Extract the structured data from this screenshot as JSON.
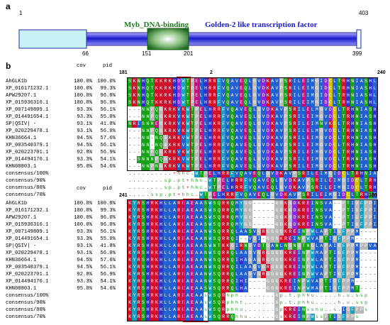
{
  "panel_a": {
    "label": "a",
    "start_pos": "1",
    "end_pos": "403",
    "domain_myb": "Myb_DNA-binding",
    "domain_golden": "Golden-2 like transcription factor",
    "ticks": [
      "66",
      "151",
      "201",
      "399"
    ],
    "colors": {
      "light": "#c7f0f7",
      "golden": "#2222cc",
      "myb": "#2f7d2a",
      "myb_text": "#1f7a1f"
    }
  },
  "panel_b": {
    "label": "b",
    "block1": {
      "start": "181",
      "mid": "2",
      "end": "240",
      "header": {
        "cov": "cov",
        "pid": "pid"
      },
      "rows": [
        {
          "name": "AhGLK1b",
          "cov": "100.0%",
          "pid": "100.0%",
          "seq": "SKNHQTKKRKHDWTPELHRRFVQAVEQLGVDKAVPSRILEIMGIDCLTRHNIASHLQ"
        },
        {
          "name": "XP_016171232.1",
          "cov": "100.0%",
          "pid": "99.3%",
          "seq": "SKNHQTKKRKHDWTPELHRRFVQAVEQLGVDKAVPSRILEIMGIDCLTRHNIASHLQ"
        },
        {
          "name": "APW29207.1",
          "cov": "100.0%",
          "pid": "96.0%",
          "seq": "SKNHQTKKRKHDWTPELHRRFVQAVEQLGVDKAVPSRILEIMGIDCLTRHNIASHLQ"
        },
        {
          "name": "XP_015936316.1",
          "cov": "100.0%",
          "pid": "96.0%",
          "seq": "SKNHQTKKRKHDWTPELHRRFVQAVEQLGVDKAVPSRILEIMGIDCLTRHNIASHLQ"
        },
        {
          "name": "XP_007149809.1",
          "cov": "93.3%",
          "pid": "56.1%",
          "seq": "---NNPQGKRKVKWTPELHRRFVQAVEQLGVDKAVPSRILELMGVDCLTRHNIASHLQ"
        },
        {
          "name": "XP_014491654.1",
          "cov": "93.3%",
          "pid": "55.0%",
          "seq": "---NNPQGKRKVKWTPELHRRFVQAVEQLGVDKAVPSRILEIMGVDCLTRHNIASHLQ"
        },
        {
          "name": "SP|QSIV| -",
          "cov": "93.1%",
          "pid": "41.8%",
          "seq": "NRISNNEGKRKVKWTPELHKRFVQAVEQLGVDKAVPSRILEIMNVKCLTRHNIASHLQ"
        },
        {
          "name": "XP_020229478.1",
          "cov": "93.1%",
          "pid": "56.0%",
          "seq": "---NNPQGKRKVKWTPELHRRFVQAVEQLGVDKAVPSRILELMGVDCLTRHNIASHLQ"
        },
        {
          "name": "KHN36664.1",
          "cov": "94.5%",
          "pid": "57.6%",
          "seq": "---NN-NQGKRKVWTPELHRRFVQAVEQLGVDKAVPSRILEIMGVDCLTRHNIASHLQ"
        },
        {
          "name": "XP_003540379.1",
          "cov": "94.5%",
          "pid": "56.1%",
          "seq": "---NN-NQGKRKVWTPELHRRFVQAVEQLGVDKAVPSRILEIMGVDCLTRHNIASHLQ"
        },
        {
          "name": "XP_020223701.1",
          "cov": "92.8%",
          "pid": "56.9%",
          "seq": "---NNPQGKRKVKWTPELHRRFVQAVEQLGVDKAVPSRILEIMGVDCLTRHNIASHLQ"
        },
        {
          "name": "XP_014494176.1",
          "cov": "93.3%",
          "pid": "54.1%",
          "seq": "--SNNNPQGKRKVWTPELHRRFVQAVEQLGVDKAVPSRILEIMGVDCLTRHNIASHLQ"
        },
        {
          "name": "KHN08803.1",
          "cov": "95.0%",
          "pid": "54.6%",
          "seq": "---NNPNGKRKVKWTPELHRRFVQAVEQLGVDKAVPSRILEIMGVDCLTRHNIASHLQ"
        }
      ],
      "consensus": [
        {
          "name": "consensus/100%",
          "seq": "..........+hhc.WTPELHRRFVQAVEQLGVDKAVPSRILEIMGIDCLTRHNIASHLQ"
        },
        {
          "name": "consensus/90%",
          "seq": "........sp.pt+hhc.WTPELHRRFVQAVEQLGVDKAVPSRILEIMGIDCLTRHNIASHLQ"
        },
        {
          "name": "consensus/80%",
          "seq": "........sp.pt+hhc.WTPELHRRFVQAVEQLGVDKAVPSRILEIMGIDCLTRHNIASHLQ"
        },
        {
          "name": "consensus/70%",
          "seq": ".....ssp.pt+hhc.WTPELHRRFVQAVEQLGVDKAVPSRILEIMGIDCLTRHNIASHLQ"
        }
      ]
    },
    "block2": {
      "start": "241",
      "end": ".300",
      "header": {
        "cov": "cov",
        "pid": "pid"
      },
      "rows": [
        {
          "name": "AhGLK1b",
          "cov": "100.0%",
          "pid": "100.0%",
          "seq": "KYRSHRKHLLAREAEAASWSQRRQMYGG-----GGKGDKREINSVA--PTIGFPPIP"
        },
        {
          "name": "XP_016171232.1",
          "cov": "100.0%",
          "pid": "99.3%",
          "seq": "KYRSHRKHLLAREAEAASWSQRRQMYGG-----GGKGDKREINSVA--PTIGFPPIP"
        },
        {
          "name": "APW29207.1",
          "cov": "100.0%",
          "pid": "96.0%",
          "seq": "KYRSHRKHLLAREAEAASWSQRRQMYGG-----GGKGDKREINSVA--PTIGFPPIP"
        },
        {
          "name": "XP_015936316.1",
          "cov": "100.0%",
          "pid": "96.0%",
          "seq": "KYRSHRKHLLAREAEAASWSQRRQMYGG-----GGKGDKREINSVA--PTIGFPPIP"
        },
        {
          "name": "XP_007149809.1",
          "cov": "93.3%",
          "pid": "56.1%",
          "seq": "KYRSHRKHLLAREAEAANWSQRRQLAASVGRGGGGKREINPWLAPTIGFPPM-----"
        },
        {
          "name": "XP_014491654.1",
          "cov": "93.3%",
          "pid": "55.0%",
          "seq": "KYRSHRKHLLAREAEAANWSQRRQI--VGI-GGGKREINPWVAPTIGFPPM-----"
        },
        {
          "name": "SP|QSIV| -",
          "cov": "93.1%",
          "pid": "41.8%",
          "seq": "KYRSHRKHLLAREAEAASWNTKKGIRNGVDTGANLNGNGTNGLAPAIGFPPMPPVA"
        },
        {
          "name": "XP_020229478.1",
          "cov": "93.1%",
          "pid": "56.0%",
          "seq": "KYRSHRKHLLAREAEAANWSQRRQLAAGVGRGGGGKREINPWMAPTIGFPPM-----"
        },
        {
          "name": "KHN36664.1",
          "cov": "94.5%",
          "pid": "57.6%",
          "seq": "KYRSHRKHLLAREAEAANWSQRRQIHAGAGRGGGGKREINPWLAPTIGFPPM-----"
        },
        {
          "name": "XP_003540379.1",
          "cov": "94.5%",
          "pid": "56.1%",
          "seq": "KYRSHRKHLLAREAEAANWSQRRQILAAGVGRGGGKREINPWLAPTIGFPPM-----"
        },
        {
          "name": "XP_020223701.1",
          "cov": "92.8%",
          "pid": "56.9%",
          "seq": "KYRSHRKHLLAREAEAANWSQRRQLAAGVGRGGGGKREINPWVAPTIGFPPM-----"
        },
        {
          "name": "XP_014494176.1",
          "cov": "93.3%",
          "pid": "54.1%",
          "seq": "KYRSHRKHLLAREAEAANWSQRRQIHI----GGGKREINPWVAPTIGFPPM-----"
        },
        {
          "name": "KHN08803.1",
          "cov": "95.0%",
          "pid": "54.6%",
          "seq": "KYRSHRKHLLAREAEAASWSQRRQLHA----GGGKREINPWMAPTIGFPPMT----"
        }
      ],
      "consensus": [
        {
          "name": "consensus/100%",
          "seq": "KYRSHRKHLLAREAEAAsWSQRhph........Gp.t.phhu.....h.u.ssp"
        },
        {
          "name": "consensus/90%",
          "seq": "KYRSHRKHLLAREAEAAsWSQRphht.......Gp.t.phhu.....h.u.ssp"
        },
        {
          "name": "consensus/80%",
          "seq": "KYRSHRKHLLAREAEAAsWSQRphhu.......GpKREINsshu..s.IGFPPs"
        },
        {
          "name": "consensus/70%",
          "seq": "KYRSHRKHLLAREAEAAsWSQRRQhhu......GsKREINPWssPTIGFPPs"
        }
      ]
    }
  },
  "residue_colors": {
    "K": "#d0102a",
    "R": "#d0102a",
    "H": "#3030c8",
    "D": "#8a2be2",
    "E": "#c01080",
    "S": "#18a018",
    "T": "#18a018",
    "N": "#18a018",
    "Q": "#18a018",
    "G": "#b8b8b8",
    "P": "#b8b8b8",
    "A": "#2060d0",
    "V": "#2060d0",
    "L": "#2060d0",
    "I": "#2060d0",
    "M": "#2060d0",
    "F": "#18a0c0",
    "W": "#18a0c0",
    "Y": "#18a0c0",
    "C": "#d0c000",
    "default": "#ffffff"
  }
}
